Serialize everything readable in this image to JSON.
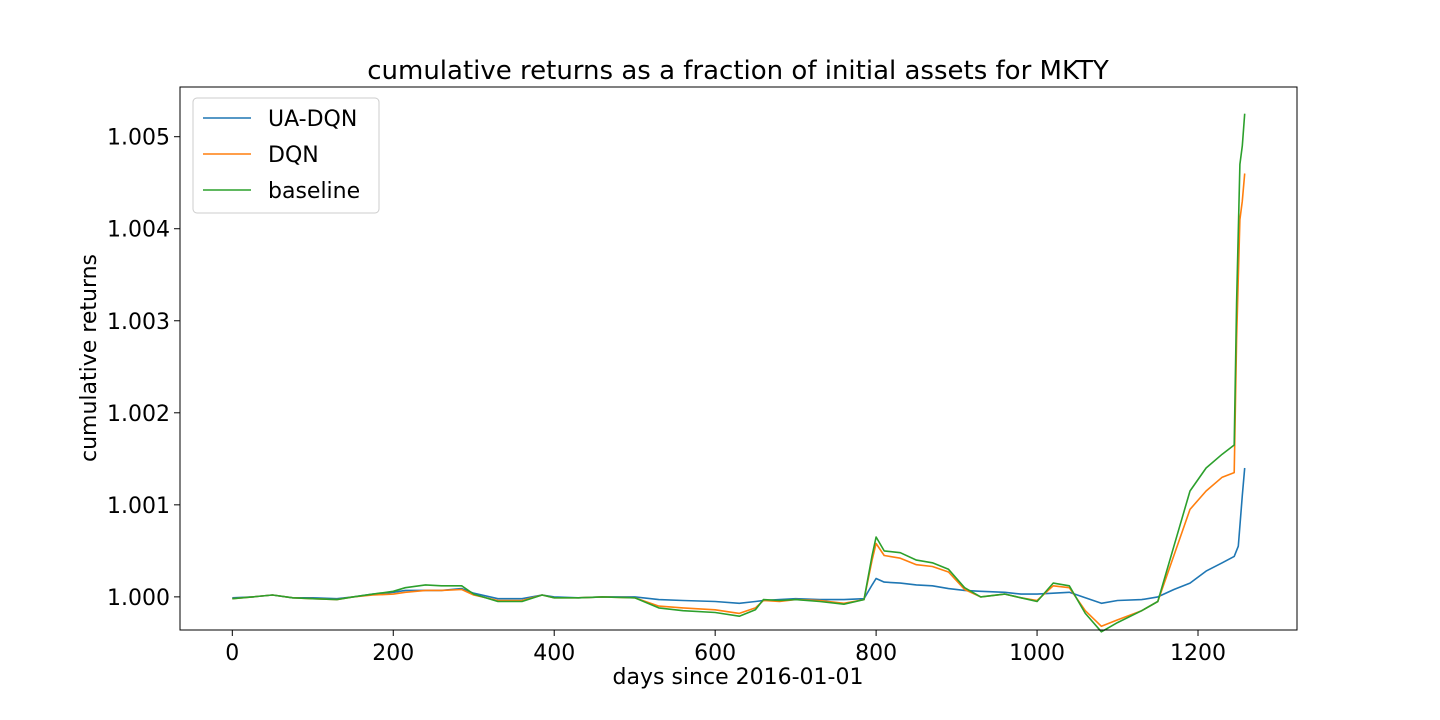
{
  "chart_data": {
    "type": "line",
    "title": "cumulative returns as a fraction of initial assets for MKTY",
    "xlabel": "days since 2016-01-01",
    "ylabel": "cumulative returns",
    "xlim": [
      -65,
      1323
    ],
    "ylim": [
      0.99964,
      1.00554
    ],
    "x_ticks": [
      0,
      200,
      400,
      600,
      800,
      1000,
      1200
    ],
    "x_tick_labels": [
      "0",
      "200",
      "400",
      "600",
      "800",
      "1000",
      "1200"
    ],
    "y_ticks": [
      1.0,
      1.001,
      1.002,
      1.003,
      1.004,
      1.005
    ],
    "y_tick_labels": [
      "1.000",
      "1.001",
      "1.002",
      "1.003",
      "1.004",
      "1.005"
    ],
    "grid": false,
    "legend_position": "top-left",
    "series": [
      {
        "name": "UA-DQN",
        "color": "#1f77b4",
        "points": [
          [
            0,
            0.99999
          ],
          [
            25,
            1.0
          ],
          [
            50,
            1.00002
          ],
          [
            75,
            0.99999
          ],
          [
            100,
            0.99999
          ],
          [
            130,
            0.99998
          ],
          [
            150,
            1.0
          ],
          [
            175,
            1.00003
          ],
          [
            200,
            1.00005
          ],
          [
            215,
            1.00007
          ],
          [
            240,
            1.00007
          ],
          [
            260,
            1.00007
          ],
          [
            285,
            1.00009
          ],
          [
            300,
            1.00004
          ],
          [
            330,
            0.99998
          ],
          [
            360,
            0.99998
          ],
          [
            385,
            1.00002
          ],
          [
            400,
            1.0
          ],
          [
            430,
            0.99999
          ],
          [
            460,
            1.0
          ],
          [
            500,
            1.0
          ],
          [
            530,
            0.99997
          ],
          [
            560,
            0.99996
          ],
          [
            600,
            0.99995
          ],
          [
            630,
            0.99993
          ],
          [
            650,
            0.99995
          ],
          [
            660,
            0.99996
          ],
          [
            680,
            0.99997
          ],
          [
            700,
            0.99998
          ],
          [
            730,
            0.99997
          ],
          [
            760,
            0.99997
          ],
          [
            785,
            0.99998
          ],
          [
            795,
            1.00013
          ],
          [
            800,
            1.0002
          ],
          [
            810,
            1.00016
          ],
          [
            830,
            1.00015
          ],
          [
            850,
            1.00013
          ],
          [
            870,
            1.00012
          ],
          [
            890,
            1.00009
          ],
          [
            910,
            1.00007
          ],
          [
            930,
            1.00006
          ],
          [
            960,
            1.00005
          ],
          [
            980,
            1.00003
          ],
          [
            1000,
            1.00003
          ],
          [
            1020,
            1.00004
          ],
          [
            1040,
            1.00005
          ],
          [
            1060,
            0.99999
          ],
          [
            1080,
            0.99993
          ],
          [
            1100,
            0.99996
          ],
          [
            1130,
            0.99997
          ],
          [
            1150,
            1.0
          ],
          [
            1170,
            1.00008
          ],
          [
            1190,
            1.00015
          ],
          [
            1210,
            1.00028
          ],
          [
            1230,
            1.00037
          ],
          [
            1245,
            1.00044
          ],
          [
            1250,
            1.00055
          ],
          [
            1255,
            1.0011
          ],
          [
            1258,
            1.0014
          ]
        ]
      },
      {
        "name": "DQN",
        "color": "#ff7f0e",
        "points": [
          [
            0,
            0.99998
          ],
          [
            25,
            1.0
          ],
          [
            50,
            1.00002
          ],
          [
            75,
            0.99999
          ],
          [
            100,
            0.99998
          ],
          [
            130,
            0.99997
          ],
          [
            150,
            1.0
          ],
          [
            175,
            1.00002
          ],
          [
            200,
            1.00003
          ],
          [
            215,
            1.00005
          ],
          [
            240,
            1.00007
          ],
          [
            260,
            1.00007
          ],
          [
            285,
            1.00008
          ],
          [
            300,
            1.00002
          ],
          [
            330,
            0.99996
          ],
          [
            360,
            0.99996
          ],
          [
            385,
            1.00002
          ],
          [
            400,
            0.99999
          ],
          [
            430,
            0.99999
          ],
          [
            460,
            1.0
          ],
          [
            500,
            0.99999
          ],
          [
            530,
            0.9999
          ],
          [
            560,
            0.99988
          ],
          [
            600,
            0.99986
          ],
          [
            630,
            0.99982
          ],
          [
            650,
            0.99988
          ],
          [
            660,
            0.99996
          ],
          [
            680,
            0.99995
          ],
          [
            700,
            0.99997
          ],
          [
            730,
            0.99996
          ],
          [
            760,
            0.99993
          ],
          [
            785,
            0.99997
          ],
          [
            795,
            1.0004
          ],
          [
            800,
            1.00058
          ],
          [
            810,
            1.00045
          ],
          [
            830,
            1.00042
          ],
          [
            850,
            1.00035
          ],
          [
            870,
            1.00033
          ],
          [
            890,
            1.00027
          ],
          [
            910,
            1.00008
          ],
          [
            930,
            1.0
          ],
          [
            960,
            1.00003
          ],
          [
            980,
            0.99999
          ],
          [
            1000,
            0.99996
          ],
          [
            1020,
            1.00012
          ],
          [
            1040,
            1.0001
          ],
          [
            1060,
            0.99985
          ],
          [
            1080,
            0.99968
          ],
          [
            1100,
            0.99975
          ],
          [
            1130,
            0.99985
          ],
          [
            1150,
            0.99995
          ],
          [
            1170,
            1.00045
          ],
          [
            1190,
            1.00095
          ],
          [
            1210,
            1.00115
          ],
          [
            1230,
            1.0013
          ],
          [
            1245,
            1.00135
          ],
          [
            1248,
            1.0028
          ],
          [
            1252,
            1.0041
          ],
          [
            1255,
            1.0043
          ],
          [
            1258,
            1.0046
          ]
        ]
      },
      {
        "name": "baseline",
        "color": "#2ca02c",
        "points": [
          [
            0,
            0.99998
          ],
          [
            25,
            1.0
          ],
          [
            50,
            1.00002
          ],
          [
            75,
            0.99999
          ],
          [
            100,
            0.99998
          ],
          [
            130,
            0.99997
          ],
          [
            150,
            1.0
          ],
          [
            175,
            1.00003
          ],
          [
            200,
            1.00006
          ],
          [
            215,
            1.0001
          ],
          [
            240,
            1.00013
          ],
          [
            260,
            1.00012
          ],
          [
            285,
            1.00012
          ],
          [
            300,
            1.00003
          ],
          [
            330,
            0.99995
          ],
          [
            360,
            0.99995
          ],
          [
            385,
            1.00002
          ],
          [
            400,
            0.99999
          ],
          [
            430,
            0.99999
          ],
          [
            460,
            1.0
          ],
          [
            500,
            0.99999
          ],
          [
            530,
            0.99988
          ],
          [
            560,
            0.99985
          ],
          [
            600,
            0.99983
          ],
          [
            630,
            0.99979
          ],
          [
            650,
            0.99986
          ],
          [
            660,
            0.99997
          ],
          [
            680,
            0.99996
          ],
          [
            700,
            0.99997
          ],
          [
            730,
            0.99995
          ],
          [
            760,
            0.99992
          ],
          [
            785,
            0.99997
          ],
          [
            795,
            1.00045
          ],
          [
            800,
            1.00065
          ],
          [
            810,
            1.0005
          ],
          [
            830,
            1.00048
          ],
          [
            850,
            1.0004
          ],
          [
            870,
            1.00037
          ],
          [
            890,
            1.0003
          ],
          [
            910,
            1.0001
          ],
          [
            930,
            1.0
          ],
          [
            960,
            1.00003
          ],
          [
            980,
            0.99999
          ],
          [
            1000,
            0.99995
          ],
          [
            1020,
            1.00015
          ],
          [
            1040,
            1.00012
          ],
          [
            1060,
            0.99982
          ],
          [
            1080,
            0.99962
          ],
          [
            1100,
            0.99972
          ],
          [
            1130,
            0.99985
          ],
          [
            1150,
            0.99995
          ],
          [
            1170,
            1.00055
          ],
          [
            1190,
            1.00115
          ],
          [
            1210,
            1.0014
          ],
          [
            1230,
            1.00155
          ],
          [
            1245,
            1.00165
          ],
          [
            1248,
            1.0032
          ],
          [
            1252,
            1.0047
          ],
          [
            1255,
            1.0049
          ],
          [
            1258,
            1.00525
          ]
        ]
      }
    ]
  }
}
